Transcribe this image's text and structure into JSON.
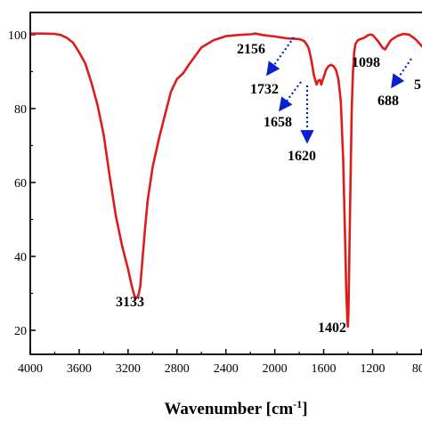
{
  "chart_data": {
    "type": "line",
    "title": "",
    "xlabel": "Wavenumber [cm",
    "xlabel_sup": "-1",
    "xlabel_end": "]",
    "ylabel": "",
    "xlim": [
      4000,
      650
    ],
    "ylim": [
      13.5,
      106
    ],
    "x_reversed": true,
    "grid": false,
    "x_ticks": [
      4000,
      3600,
      3200,
      2800,
      2400,
      2000,
      1600,
      1200,
      800
    ],
    "x_tick_labels": [
      "4000",
      "3600",
      "3200",
      "2800",
      "2400",
      "2000",
      "1600",
      "1200",
      "800"
    ],
    "y_ticks": [
      100,
      80,
      60,
      40,
      20
    ],
    "y_tick_labels": [
      "100",
      "80",
      "60",
      "40",
      "20"
    ],
    "series_color": "#dd1c1c",
    "annotation_color": "#0a1fd0",
    "series": [
      {
        "name": "",
        "x": [
          4000,
          3900,
          3800,
          3750,
          3700,
          3650,
          3600,
          3550,
          3500,
          3450,
          3400,
          3350,
          3300,
          3250,
          3200,
          3170,
          3150,
          3133,
          3115,
          3100,
          3080,
          3060,
          3040,
          3000,
          2950,
          2900,
          2850,
          2800,
          2750,
          2700,
          2600,
          2500,
          2400,
          2300,
          2200,
          2156,
          2100,
          2000,
          1900,
          1800,
          1760,
          1732,
          1720,
          1700,
          1680,
          1658,
          1645,
          1630,
          1620,
          1600,
          1580,
          1560,
          1540,
          1520,
          1500,
          1480,
          1460,
          1440,
          1425,
          1415,
          1405,
          1402,
          1398,
          1390,
          1380,
          1370,
          1360,
          1350,
          1340,
          1320,
          1300,
          1280,
          1260,
          1240,
          1220,
          1200,
          1180,
          1150,
          1120,
          1098,
          1080,
          1050,
          1000,
          950,
          900,
          850,
          800,
          760,
          740,
          720,
          700,
          688,
          675,
          660
        ],
        "values": [
          100.3,
          100.3,
          100.2,
          99.9,
          99.1,
          97.8,
          95.2,
          92.2,
          87.0,
          81.0,
          73.0,
          61.5,
          51.0,
          43.0,
          36.5,
          32.0,
          29.5,
          28.7,
          29.5,
          32.0,
          40.0,
          48.0,
          55.0,
          64.0,
          71.5,
          78.0,
          84.5,
          88.0,
          89.5,
          92.0,
          96.5,
          98.5,
          99.6,
          99.9,
          100.1,
          100.3,
          99.9,
          99.5,
          99.0,
          98.8,
          98.3,
          97.0,
          96.0,
          93.0,
          89.0,
          86.5,
          87.5,
          87.8,
          86.5,
          88.5,
          90.5,
          91.5,
          91.8,
          91.5,
          90.5,
          88.0,
          82.0,
          66.0,
          45.0,
          30.0,
          22.0,
          21.0,
          24.0,
          40.0,
          62.0,
          80.0,
          90.0,
          95.5,
          97.5,
          98.5,
          98.8,
          99.0,
          99.3,
          99.8,
          100.0,
          99.9,
          99.2,
          98.0,
          96.5,
          96.0,
          97.0,
          98.5,
          99.6,
          100.2,
          100.0,
          98.8,
          97.0,
          95.5,
          94.0,
          92.0,
          90.3,
          89.5,
          89.0,
          88.8
        ]
      }
    ],
    "annotations": [
      {
        "text": "3133",
        "x": 3133,
        "y": 28.7,
        "arrow": false
      },
      {
        "text": "2156",
        "x": 2156,
        "y": 100.3,
        "arrow": false
      },
      {
        "text": "1732",
        "x": 1732,
        "y": 97.0,
        "arrow": true
      },
      {
        "text": "1658",
        "x": 1658,
        "y": 86.5,
        "arrow": true
      },
      {
        "text": "1620",
        "x": 1620,
        "y": 86.5,
        "arrow": true
      },
      {
        "text": "1402",
        "x": 1402,
        "y": 21.0,
        "arrow": false
      },
      {
        "text": "1098",
        "x": 1098,
        "y": 96.0,
        "arrow": false
      },
      {
        "text": "688",
        "x": 688,
        "y": 89.5,
        "arrow": true
      },
      {
        "text": "5",
        "x": 660,
        "y": 88.8,
        "arrow": false
      }
    ]
  }
}
